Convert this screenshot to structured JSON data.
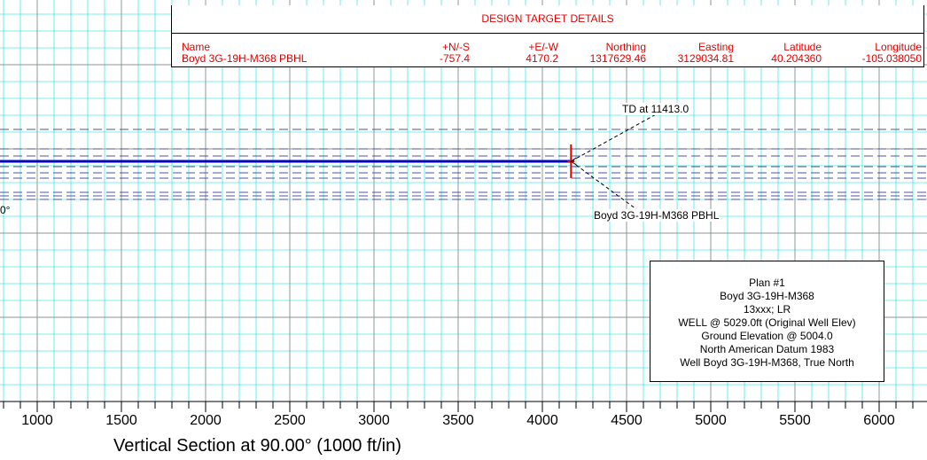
{
  "chart_data": {
    "type": "line",
    "title": "",
    "xlabel": "Vertical Section at 90.00° (1000 ft/in)",
    "x_ticks": [
      1000,
      1500,
      2000,
      2500,
      3000,
      3500,
      4000,
      4500,
      5000,
      5500,
      6000
    ],
    "x_tick_labels": [
      "1000",
      "1500",
      "2000",
      "2500",
      "3000",
      "3500",
      "4000",
      "4500",
      "5000",
      "5500",
      "6000"
    ],
    "xlim": [
      700,
      6300
    ],
    "grid": true,
    "annotations": [
      {
        "text": "TD at 11413.0",
        "x": 4170
      },
      {
        "text": "Boyd 3G-19H-M368 PBHL",
        "x": 4170
      }
    ],
    "left_edge_text": "0°",
    "series": [
      {
        "values": [
          [
            700,
            0
          ],
          [
            4170,
            0
          ]
        ]
      }
    ],
    "target_marker_x": 4170.2
  },
  "design_target": {
    "title": "DESIGN TARGET DETAILS",
    "headers": [
      "Name",
      "+N/-S",
      "+E/-W",
      "Northing",
      "Easting",
      "Latitude",
      "Longitude"
    ],
    "row": [
      "Boyd 3G-19H-M368 PBHL",
      "-757.4",
      "4170.2",
      "1317629.46",
      "3129034.81",
      "40.204360",
      "-105.038050"
    ]
  },
  "plan_box": {
    "lines": [
      "Plan #1",
      "Boyd 3G-19H-M368",
      "13xxx; LR",
      "WELL @ 5029.0ft (Original Well Elev)",
      "Ground Elevation @  5004.0",
      "North American Datum 1983",
      "Well Boyd 3G-19H-M368, True North"
    ]
  },
  "colors": {
    "grid_minor": "#00e0e0",
    "grid_major": "#909090",
    "well_path": "#0000c0",
    "dashed_lines": "#5050a0",
    "target_red": "#e60000",
    "text": "#000000"
  }
}
